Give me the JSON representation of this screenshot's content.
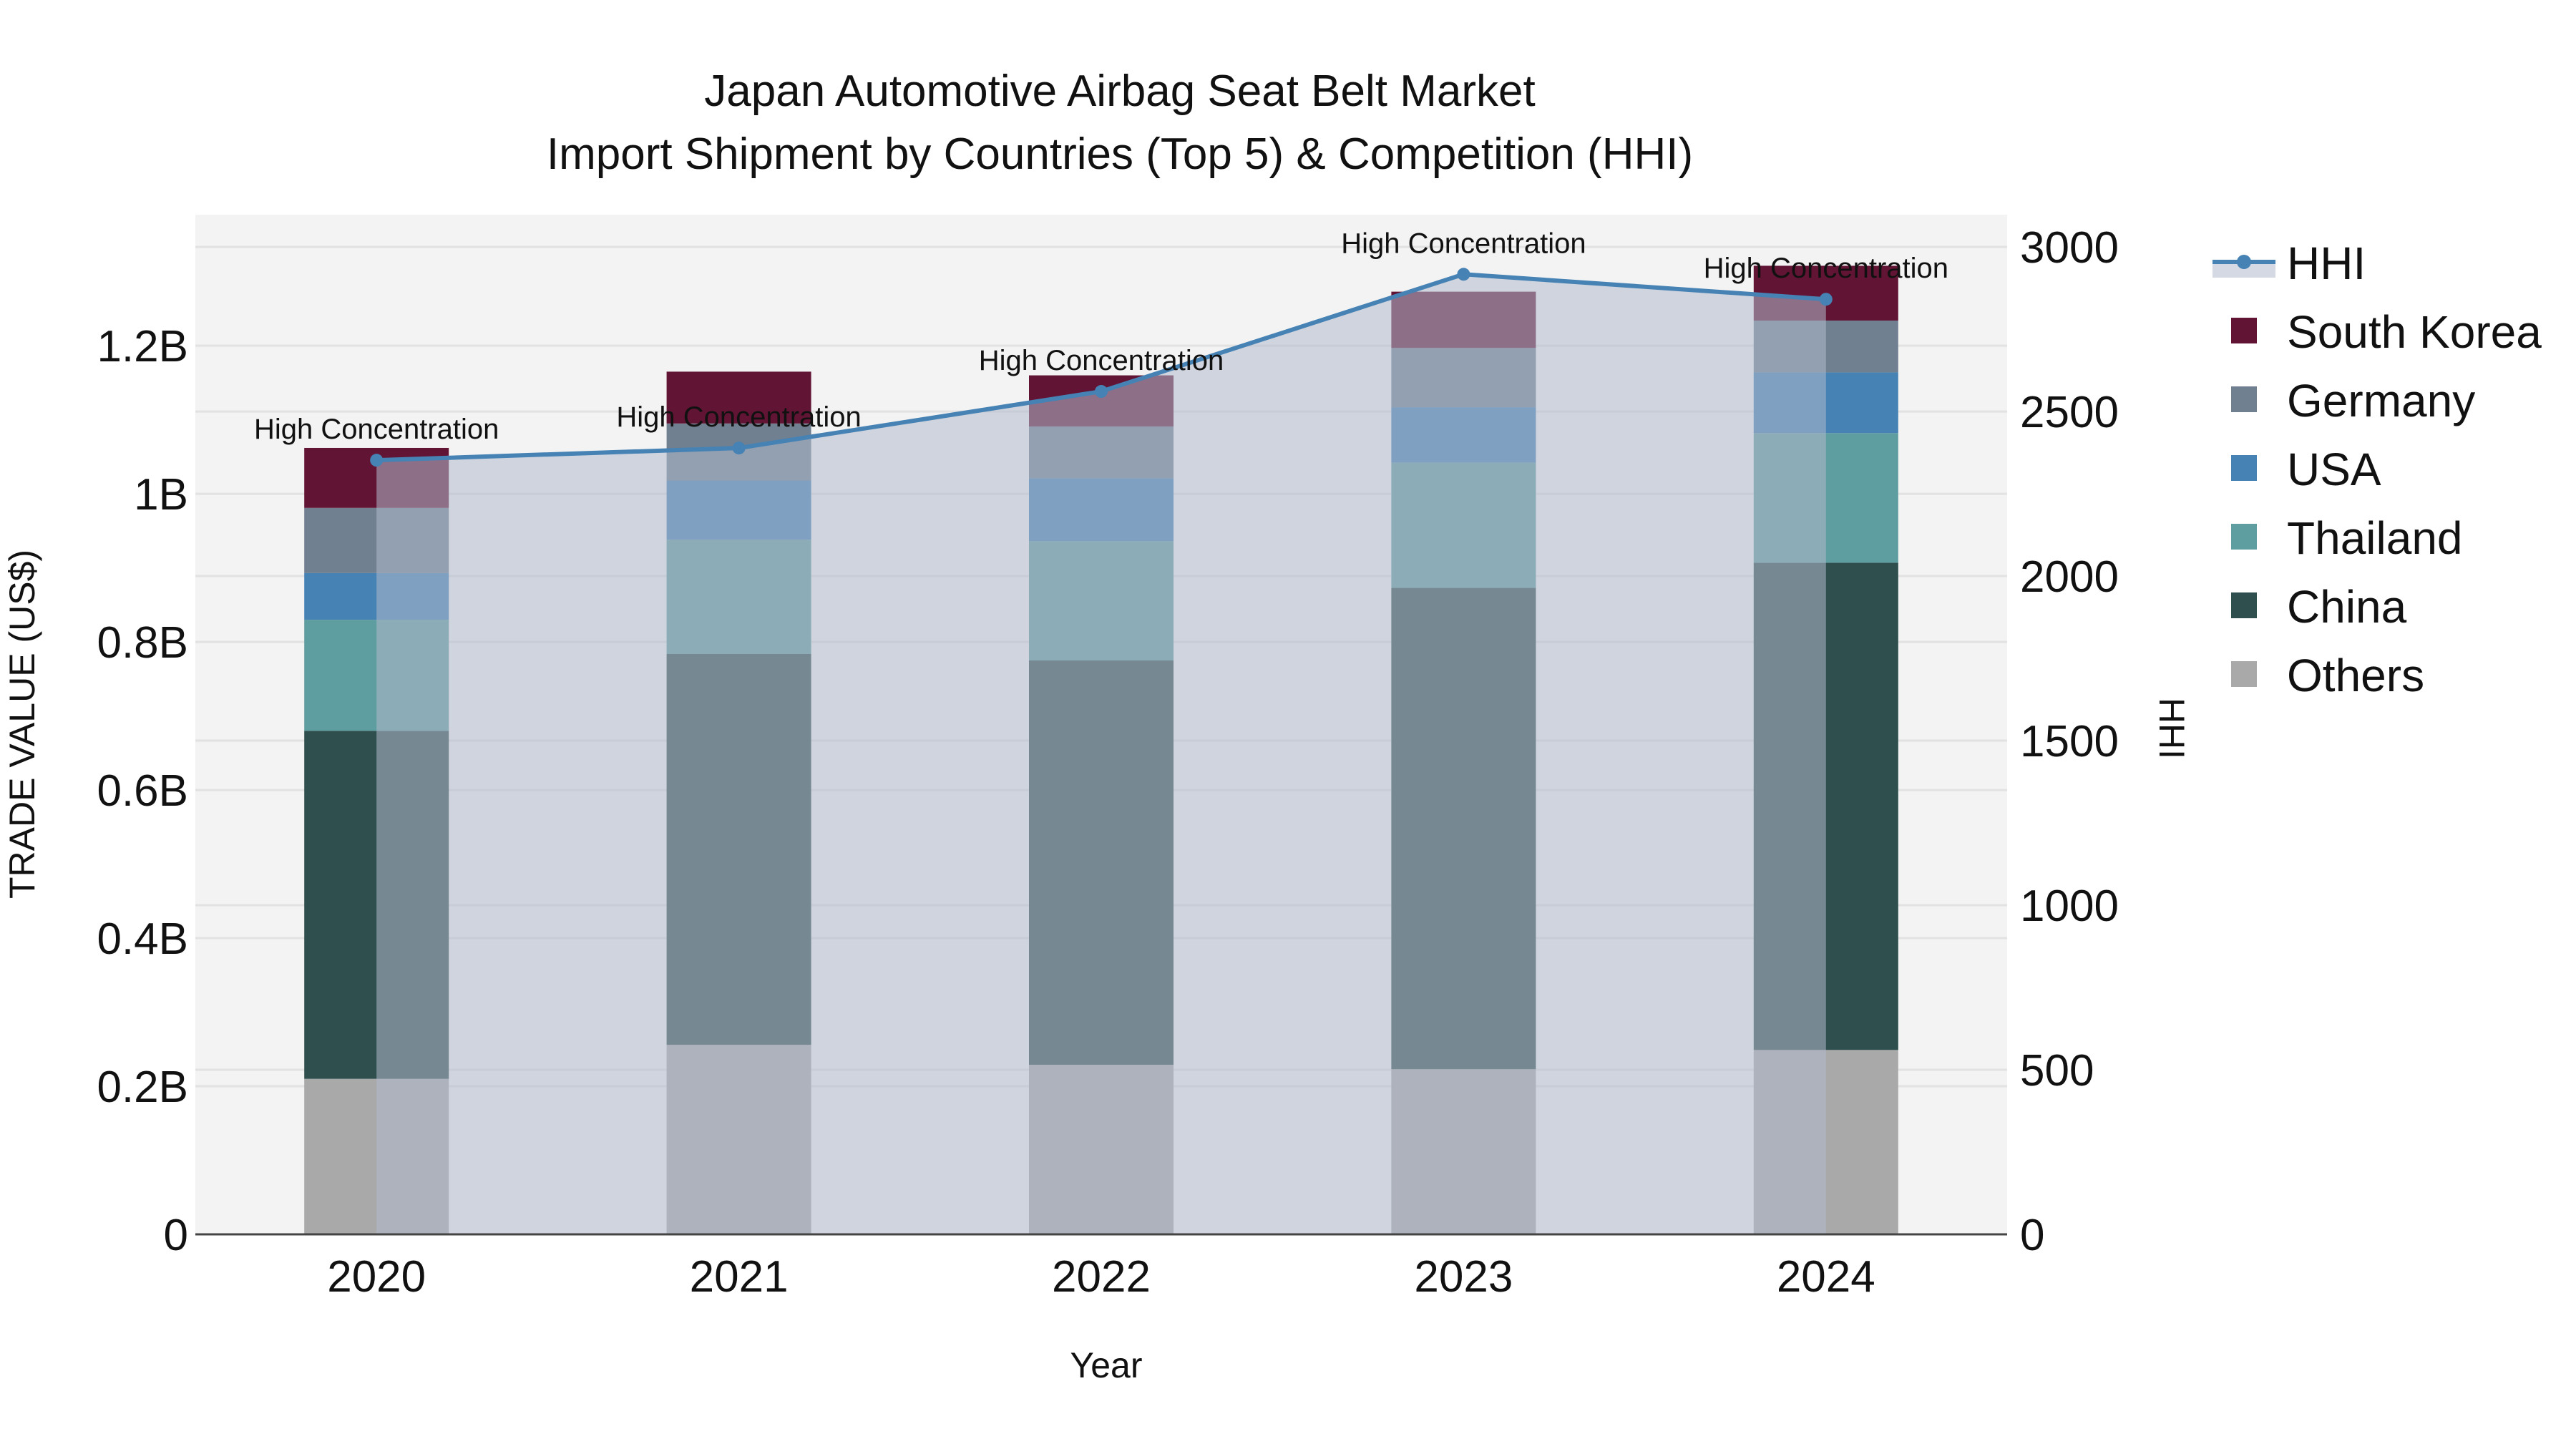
{
  "title": {
    "line1": "Japan Automotive Airbag Seat Belt Market",
    "line2": "Import Shipment by Countries (Top 5) & Competition (HHI)"
  },
  "axes": {
    "x_title": "Year",
    "y_left_title": "TRADE VALUE (US$)",
    "y_right_title": "HHI",
    "y_left_ticks": [
      "0",
      "0.2B",
      "0.4B",
      "0.6B",
      "0.8B",
      "1B",
      "1.2B"
    ],
    "y_right_ticks": [
      "0",
      "500",
      "1000",
      "1500",
      "2000",
      "2500",
      "3000"
    ]
  },
  "colors": {
    "plot_bg": "#f3f3f3",
    "grid": "#e2e2e2",
    "South Korea": "#621434",
    "Germany": "#708090",
    "USA": "#4682b4",
    "Thailand": "#5f9ea0",
    "China": "#2f4f4f",
    "Others": "#a9a9a9",
    "hhi_line": "#4682b4",
    "hhi_fill": "rgba(176,186,204,0.55)"
  },
  "legend": [
    {
      "name": "HHI",
      "type": "line"
    },
    {
      "name": "South Korea",
      "type": "bar"
    },
    {
      "name": "Germany",
      "type": "bar"
    },
    {
      "name": "USA",
      "type": "bar"
    },
    {
      "name": "Thailand",
      "type": "bar"
    },
    {
      "name": "China",
      "type": "bar"
    },
    {
      "name": "Others",
      "type": "bar"
    }
  ],
  "chart_data": {
    "type": "bar",
    "stacked": true,
    "title": "Japan Automotive Airbag Seat Belt Market — Import Shipment by Countries (Top 5) & Competition (HHI)",
    "xlabel": "Year",
    "ylabel": "TRADE VALUE (US$)",
    "y2label": "HHI",
    "categories": [
      "2020",
      "2021",
      "2022",
      "2023",
      "2024"
    ],
    "ylim": [
      0,
      1377000000
    ],
    "y2lim": [
      0,
      3098
    ],
    "series": [
      {
        "name": "Others",
        "values": [
          210000000,
          256000000,
          229000000,
          223000000,
          249000000
        ]
      },
      {
        "name": "China",
        "values": [
          470000000,
          528000000,
          546000000,
          650000000,
          658000000
        ]
      },
      {
        "name": "Thailand",
        "values": [
          150000000,
          154000000,
          161000000,
          169000000,
          175000000
        ]
      },
      {
        "name": "USA",
        "values": [
          63000000,
          80000000,
          85000000,
          75000000,
          82000000
        ]
      },
      {
        "name": "Germany",
        "values": [
          88000000,
          77000000,
          70000000,
          80000000,
          70000000
        ]
      },
      {
        "name": "South Korea",
        "values": [
          81000000,
          70000000,
          69000000,
          76000000,
          74000000
        ]
      }
    ],
    "line_series": {
      "name": "HHI",
      "axis": "right",
      "values": [
        2352,
        2389,
        2561,
        2917,
        2841
      ],
      "annotations": [
        "High Concentration",
        "High Concentration",
        "High Concentration",
        "High Concentration",
        "High Concentration"
      ]
    },
    "legend_position": "right",
    "grid": true
  }
}
